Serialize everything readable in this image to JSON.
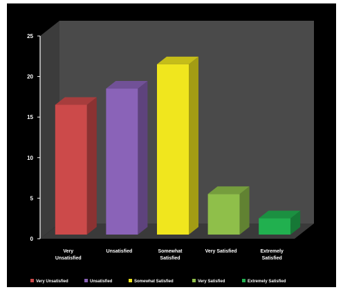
{
  "chart_data": {
    "type": "bar",
    "categories": [
      [
        "Very",
        "Unsatisfied"
      ],
      [
        "Unsatisfied"
      ],
      [
        "Somewhat",
        "Satisfied"
      ],
      [
        "Very Satisfied"
      ],
      [
        "Extremely",
        "Satisfied"
      ]
    ],
    "values": [
      16,
      18,
      21,
      5,
      2
    ],
    "yticks": [
      "0",
      "5",
      "10",
      "15",
      "20",
      "25"
    ],
    "ylim": [
      0,
      25
    ],
    "grid": false,
    "legend": {
      "position": "bottom",
      "entries": [
        "Very Unsatisfied",
        "Unsatisfied",
        "Somewhat Satisfied",
        "Very Satisfied",
        "Extremely Satisfied"
      ]
    },
    "colors": {
      "bars": [
        "#cc4a4a",
        "#8a63b8",
        "#f0e61e",
        "#8fbf4a",
        "#21b04f"
      ],
      "background": "#000000",
      "wall": "#4a4a4a",
      "floor": "#3a3a3a",
      "text": "#ffffff"
    }
  }
}
